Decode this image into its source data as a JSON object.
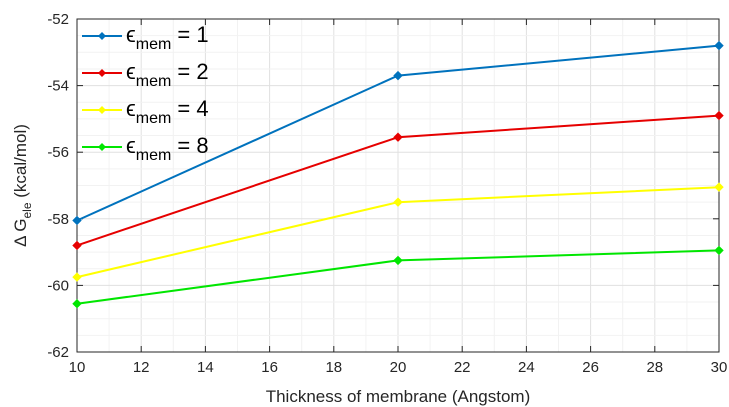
{
  "chart_data": {
    "type": "line",
    "title": "",
    "xlabel": "Thickness of membrane (Angstom)",
    "ylabel": {
      "prefix": "Δ G",
      "subscript": "ele",
      "suffix": " (kcal/mol)"
    },
    "xlim": [
      10,
      30
    ],
    "ylim": [
      -62,
      -52
    ],
    "xticks": [
      10,
      12,
      14,
      16,
      18,
      20,
      22,
      24,
      26,
      28,
      30
    ],
    "yticks": [
      -62,
      -60,
      -58,
      -56,
      -54,
      -52
    ],
    "grid": true,
    "legend_position": "top-left",
    "x": [
      10,
      20,
      30
    ],
    "series": [
      {
        "name": {
          "symbol": "ϵ",
          "subscript": "mem",
          "rest": " = 1"
        },
        "color": "#0072BD",
        "values": [
          -58.05,
          -53.7,
          -52.8
        ]
      },
      {
        "name": {
          "symbol": "ϵ",
          "subscript": "mem",
          "rest": " = 2"
        },
        "color": "#E60000",
        "values": [
          -58.8,
          -55.55,
          -54.9
        ]
      },
      {
        "name": {
          "symbol": "ϵ",
          "subscript": "mem",
          "rest": " = 4"
        },
        "color": "#FFFF00",
        "values": [
          -59.75,
          -57.5,
          -57.05
        ]
      },
      {
        "name": {
          "symbol": "ϵ",
          "subscript": "mem",
          "rest": " = 8"
        },
        "color": "#00E600",
        "values": [
          -60.55,
          -59.25,
          -58.95
        ]
      }
    ]
  }
}
